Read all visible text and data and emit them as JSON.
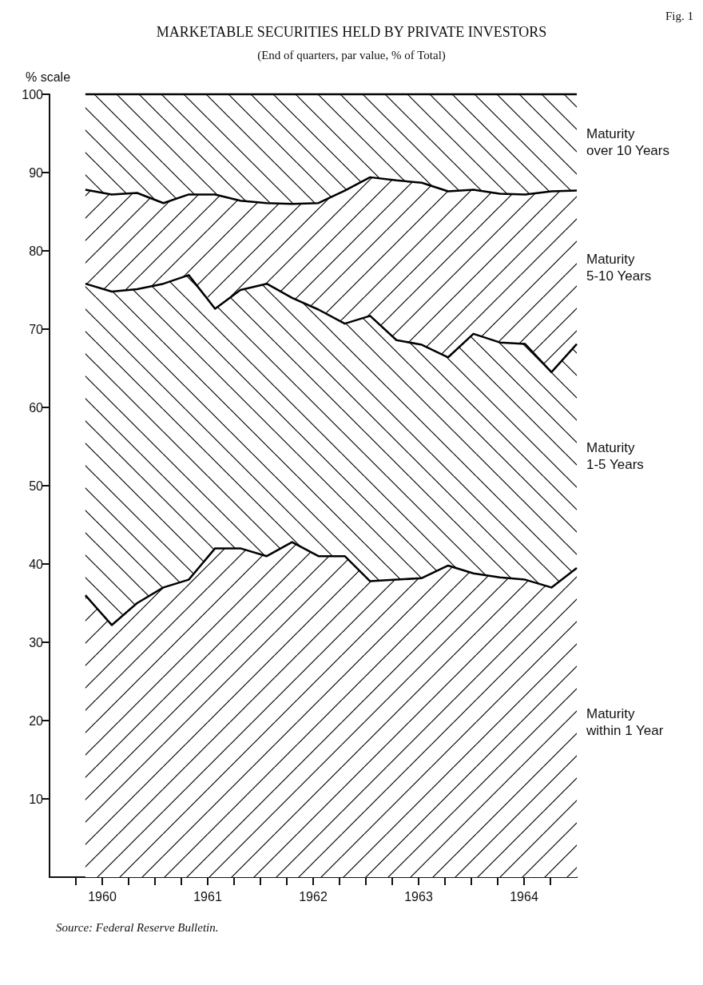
{
  "chart_data": {
    "type": "area",
    "stacked": true,
    "title": "MARKETABLE SECURITIES HELD BY PRIVATE INVESTORS",
    "subtitle": "(End of quarters, par value, % of Total)",
    "ylabel": "% scale",
    "annotations": [
      "Fig. 1",
      "Source: Federal Reserve Bulletin."
    ],
    "x": [
      1960.34,
      1960.59,
      1960.83,
      1961.08,
      1961.32,
      1961.57,
      1961.81,
      1962.06,
      1962.3,
      1962.55,
      1962.8,
      1963.04,
      1963.29,
      1963.53,
      1963.78,
      1964.02,
      1964.27,
      1964.51,
      1964.76,
      1965.0
    ],
    "series": [
      {
        "name": "Maturity within 1 Year",
        "color": "#000000",
        "values": [
          36,
          32.2,
          35,
          37,
          38,
          42,
          42,
          41,
          42.8,
          41,
          41,
          37.8,
          38,
          38.2,
          39.8,
          38.8,
          38.3,
          38,
          37,
          39.5
        ]
      },
      {
        "name": "Maturity 1-5 Years",
        "color": "#000000",
        "values": [
          39.8,
          42.6,
          40.1,
          38.8,
          38.9,
          30.6,
          33.0,
          34.8,
          31.2,
          31.5,
          29.7,
          33.9,
          30.6,
          29.8,
          26.6,
          30.6,
          30.0,
          30.1,
          27.5,
          28.6
        ]
      },
      {
        "name": "Maturity 5-10 Years",
        "color": "#000000",
        "values": [
          12.0,
          12.4,
          12.3,
          10.3,
          10.3,
          14.6,
          11.4,
          10.3,
          12.0,
          13.6,
          17.0,
          17.7,
          20.4,
          20.7,
          21.2,
          18.4,
          19.0,
          19.1,
          23.1,
          19.6
        ]
      },
      {
        "name": "Maturity over 10 Years",
        "color": "#000000",
        "values": [
          12.2,
          12.8,
          12.6,
          13.9,
          12.8,
          12.8,
          13.6,
          13.9,
          14.0,
          13.9,
          12.3,
          10.6,
          11.0,
          11.3,
          12.4,
          12.2,
          12.7,
          12.8,
          12.4,
          12.3
        ]
      }
    ],
    "xlim": [
      1960,
      1965
    ],
    "xticks": [
      {
        "value": 1960.25,
        "label": null
      },
      {
        "value": 1960.5,
        "label": "1960"
      },
      {
        "value": 1960.75,
        "label": null
      },
      {
        "value": 1961,
        "label": null
      },
      {
        "value": 1961.25,
        "label": null
      },
      {
        "value": 1961.5,
        "label": "1961"
      },
      {
        "value": 1961.75,
        "label": null
      },
      {
        "value": 1962,
        "label": null
      },
      {
        "value": 1962.25,
        "label": null
      },
      {
        "value": 1962.5,
        "label": "1962"
      },
      {
        "value": 1962.75,
        "label": null
      },
      {
        "value": 1963,
        "label": null
      },
      {
        "value": 1963.25,
        "label": null
      },
      {
        "value": 1963.5,
        "label": "1963"
      },
      {
        "value": 1963.75,
        "label": null
      },
      {
        "value": 1964,
        "label": null
      },
      {
        "value": 1964.25,
        "label": null
      },
      {
        "value": 1964.5,
        "label": "1964"
      },
      {
        "value": 1964.75,
        "label": null
      }
    ],
    "ylim": [
      0,
      100
    ],
    "yticks": [
      10,
      20,
      30,
      40,
      50,
      60,
      70,
      80,
      90,
      100
    ],
    "grid": false,
    "legend": false
  }
}
